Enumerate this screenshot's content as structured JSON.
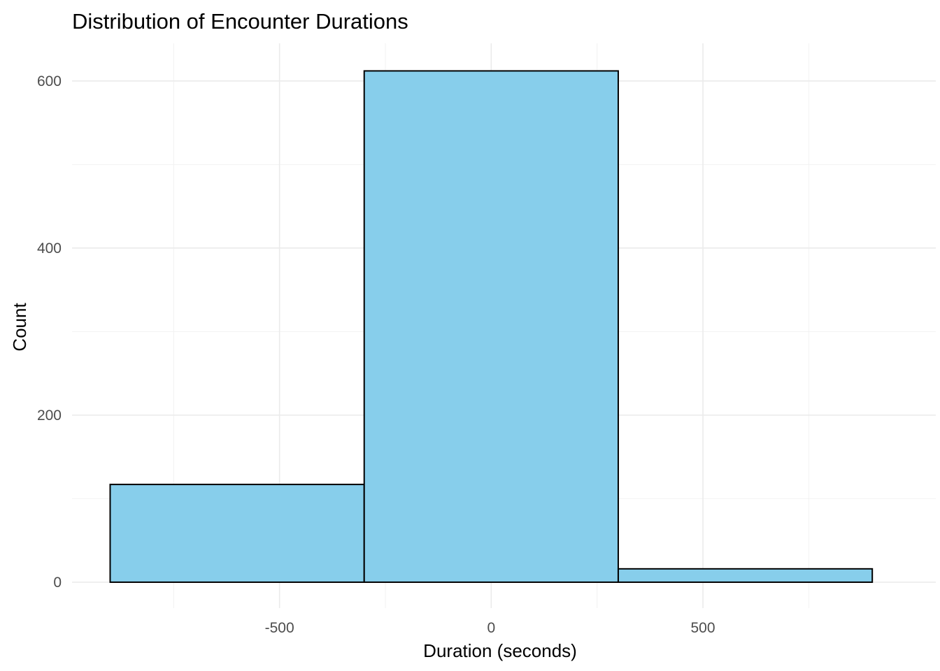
{
  "chart_data": {
    "type": "bar",
    "subtype": "histogram",
    "title": "Distribution of Encounter Durations",
    "xlabel": "Duration (seconds)",
    "ylabel": "Count",
    "bins": [
      {
        "x_start": -900,
        "x_end": -300,
        "count": 117
      },
      {
        "x_start": -300,
        "x_end": 300,
        "count": 612
      },
      {
        "x_start": 300,
        "x_end": 900,
        "count": 16
      }
    ],
    "xlim": [
      -990,
      1050
    ],
    "ylim": [
      -31,
      645
    ],
    "x_major_ticks": [
      -500,
      0,
      500
    ],
    "x_minor_ticks": [
      -750,
      -250,
      250,
      750
    ],
    "y_major_ticks": [
      0,
      200,
      400,
      600
    ],
    "y_minor_ticks": [
      100,
      300,
      500
    ],
    "x_tick_labels": [
      "-500",
      "0",
      "500"
    ],
    "y_tick_labels": [
      "0",
      "200",
      "400",
      "600"
    ],
    "bar_fill": "#87CEEB",
    "bar_outline": "#000000",
    "grid": true,
    "legend": "none"
  }
}
